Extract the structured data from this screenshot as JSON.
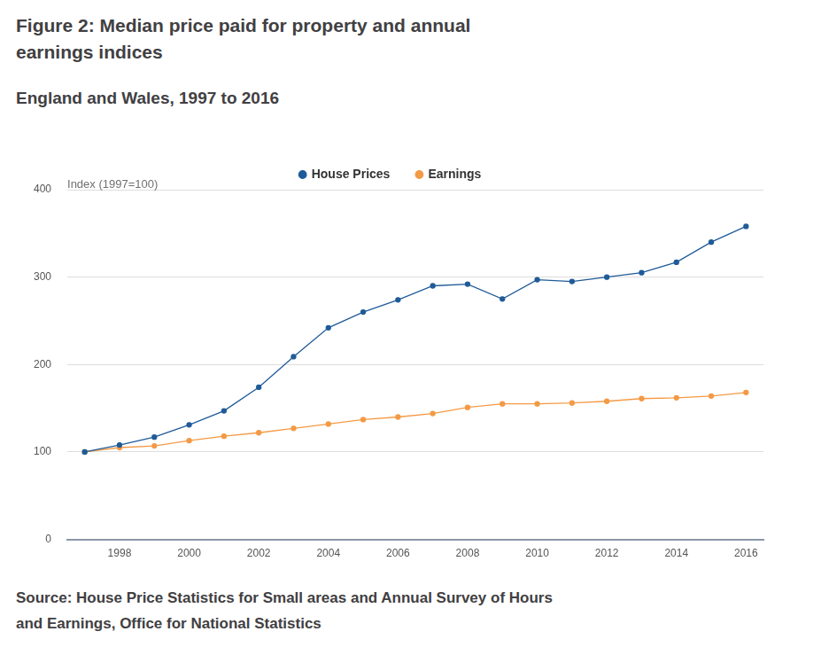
{
  "chart_data": {
    "type": "line",
    "title": "Figure 2: Median price paid for property and annual earnings indices",
    "subtitle": "England and Wales, 1997 to 2016",
    "ylabel": "Index (1997=100)",
    "source": "Source: House Price Statistics for Small areas and Annual Survey of Hours and Earnings, Office for National Statistics",
    "x": [
      1997,
      1998,
      1999,
      2000,
      2001,
      2002,
      2003,
      2004,
      2005,
      2006,
      2007,
      2008,
      2009,
      2010,
      2011,
      2012,
      2013,
      2014,
      2015,
      2016
    ],
    "series": [
      {
        "name": "House Prices",
        "color": "#1f5b98",
        "marker": "circle",
        "values": [
          100,
          108,
          117,
          131,
          147,
          174,
          209,
          242,
          260,
          274,
          290,
          292,
          275,
          297,
          295,
          300,
          305,
          317,
          340,
          358
        ]
      },
      {
        "name": "Earnings",
        "color": "#f39a45",
        "marker": "circle",
        "values": [
          100,
          105,
          107,
          113,
          118,
          122,
          127,
          132,
          137,
          140,
          144,
          151,
          155,
          155,
          156,
          158,
          161,
          162,
          164,
          168
        ]
      }
    ],
    "xlim": [
      1996.5,
      2016.5
    ],
    "xticks": [
      1998,
      2000,
      2002,
      2004,
      2006,
      2008,
      2010,
      2012,
      2014,
      2016
    ],
    "ylim": [
      0,
      400
    ],
    "yticks": [
      0,
      100,
      200,
      300,
      400
    ],
    "grid": true,
    "legend": "top"
  }
}
